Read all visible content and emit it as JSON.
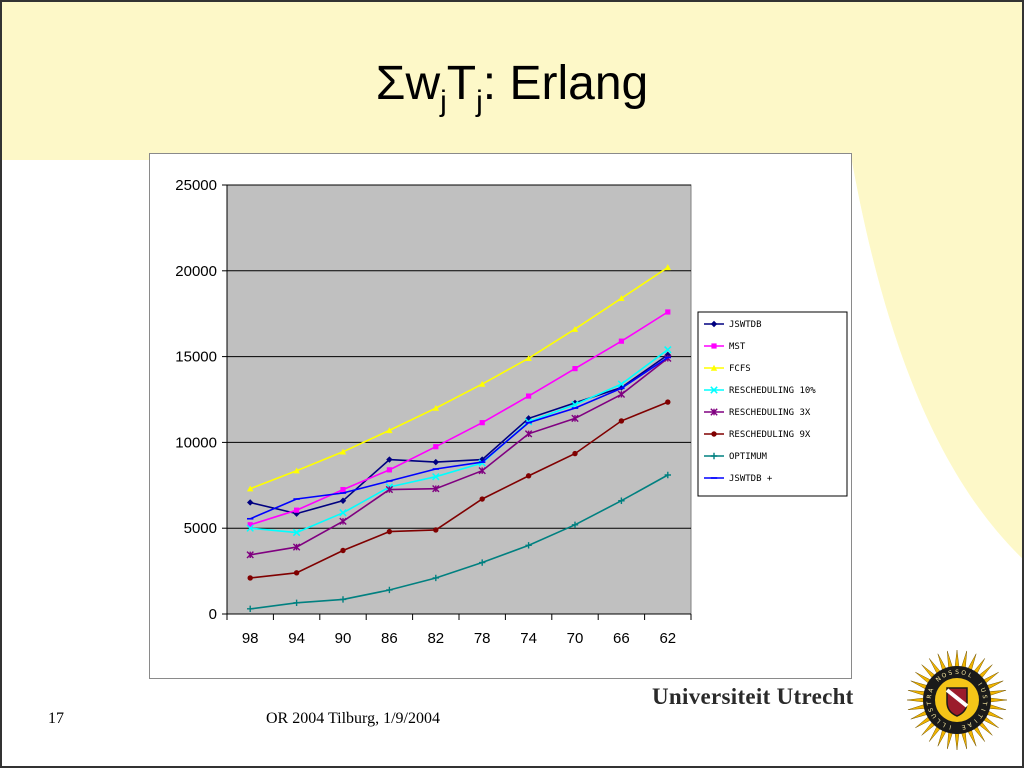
{
  "colors": {
    "background": "#fdf8c8",
    "accent_yellow": "#ffff99",
    "plot_area": "#c0c0c0"
  },
  "title": {
    "prefix": "Σw",
    "sub1": "j",
    "mid": "T",
    "sub2": "j",
    "suffix": ": Erlang"
  },
  "footer": {
    "slide_number": "17",
    "text": "OR 2004 Tilburg, 1/9/2004"
  },
  "branding": {
    "university": "Universiteit Utrecht",
    "seal_text": "SOL IUSTITIAE ILLUSTRA NOS"
  },
  "chart_data": {
    "type": "line",
    "categories": [
      "98",
      "94",
      "90",
      "86",
      "82",
      "78",
      "74",
      "70",
      "66",
      "62"
    ],
    "ylim": [
      0,
      25000
    ],
    "yticks": [
      0,
      5000,
      10000,
      15000,
      20000,
      25000
    ],
    "grid": true,
    "legend_position": "right",
    "series": [
      {
        "name": "JSWTDB",
        "color": "#000080",
        "marker": "diamond",
        "values": [
          6500,
          5850,
          6600,
          9000,
          8850,
          9000,
          11400,
          12300,
          13200,
          15100
        ]
      },
      {
        "name": "MST",
        "color": "#ff00ff",
        "marker": "square",
        "values": [
          5200,
          6050,
          7250,
          8400,
          9750,
          11150,
          12700,
          14300,
          15900,
          17600
        ]
      },
      {
        "name": "FCFS",
        "color": "#ffff00",
        "marker": "triangle",
        "values": [
          7300,
          8350,
          9450,
          10700,
          12000,
          13400,
          14900,
          16600,
          18400,
          20200
        ]
      },
      {
        "name": "RESCHEDULING 10%",
        "color": "#00ffff",
        "marker": "x",
        "values": [
          5000,
          4750,
          5900,
          7400,
          8000,
          8800,
          11200,
          12200,
          13400,
          15400
        ]
      },
      {
        "name": "RESCHEDULING 3X",
        "color": "#800080",
        "marker": "star",
        "values": [
          3450,
          3900,
          5400,
          7250,
          7300,
          8350,
          10500,
          11400,
          12800,
          14900
        ]
      },
      {
        "name": "RESCHEDULING 9X",
        "color": "#800000",
        "marker": "circle",
        "values": [
          2100,
          2400,
          3700,
          4800,
          4900,
          6700,
          8050,
          9350,
          11250,
          12350
        ]
      },
      {
        "name": "OPTIMUM",
        "color": "#008080",
        "marker": "plus",
        "values": [
          300,
          650,
          850,
          1400,
          2100,
          3000,
          4000,
          5200,
          6600,
          8100
        ]
      },
      {
        "name": "JSWTDB +",
        "color": "#0000ff",
        "marker": "dash",
        "values": [
          5550,
          6700,
          7050,
          7750,
          8450,
          8850,
          11150,
          12000,
          13150,
          14950
        ]
      }
    ]
  }
}
